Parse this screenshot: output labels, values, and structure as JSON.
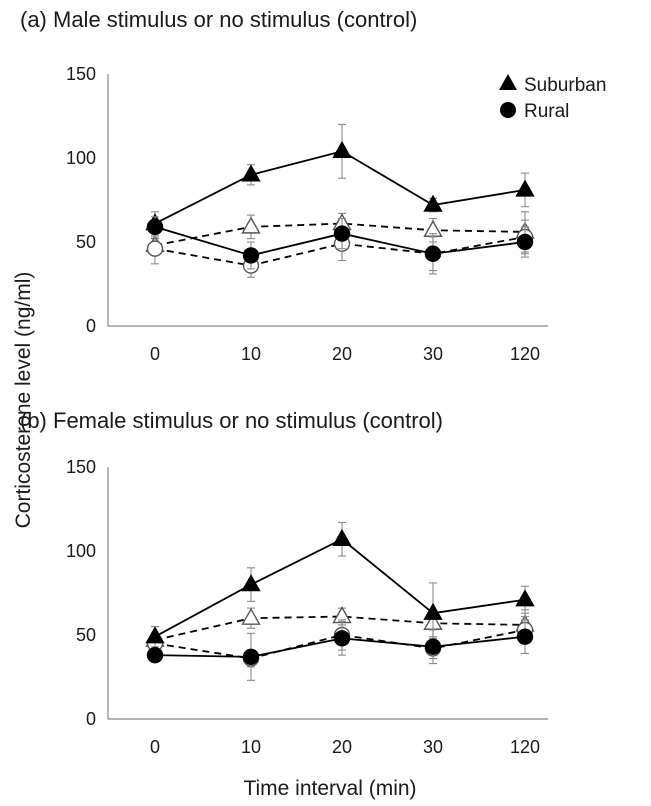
{
  "figure": {
    "shared_ylabel": "Corticosterone level (ng/ml)",
    "shared_xlabel": "Time interval (min)",
    "legend": [
      {
        "label": "Suburban",
        "marker": "triangle",
        "color": "#000000"
      },
      {
        "label": "Rural",
        "marker": "circle",
        "color": "#000000"
      }
    ]
  },
  "chart_data": [
    {
      "type": "line",
      "title": "(a) Male stimulus or no stimulus (control)",
      "categories": [
        "0",
        "10",
        "20",
        "30",
        "120"
      ],
      "ylim": [
        0,
        150
      ],
      "yticks": [
        0,
        50,
        100,
        150
      ],
      "grid": false,
      "legend_position": "top-right",
      "series": [
        {
          "name": "Suburban",
          "marker": "triangle",
          "filled": true,
          "dash": false,
          "values": [
            61,
            90,
            104,
            72,
            81
          ],
          "error": [
            7,
            6,
            16,
            4,
            10
          ]
        },
        {
          "marker": "triangle",
          "filled": false,
          "dash": true,
          "values": [
            48,
            59,
            61,
            57,
            56
          ],
          "error": [
            4,
            7,
            6,
            7,
            12
          ]
        },
        {
          "name": "Rural",
          "marker": "circle",
          "filled": true,
          "dash": false,
          "values": [
            59,
            42,
            55,
            43,
            50
          ],
          "error": [
            6,
            8,
            9,
            10,
            9
          ]
        },
        {
          "marker": "circle",
          "filled": false,
          "dash": true,
          "values": [
            46,
            36,
            49,
            43,
            53
          ],
          "error": [
            9,
            7,
            10,
            12,
            10
          ]
        }
      ]
    },
    {
      "type": "line",
      "title": "(b) Female stimulus or no stimulus (control)",
      "categories": [
        "0",
        "10",
        "20",
        "30",
        "120"
      ],
      "ylim": [
        0,
        150
      ],
      "yticks": [
        0,
        50,
        100,
        150
      ],
      "grid": false,
      "series": [
        {
          "marker": "triangle",
          "filled": true,
          "dash": false,
          "values": [
            49,
            80,
            107,
            63,
            71
          ],
          "error": [
            6,
            10,
            10,
            18,
            8
          ]
        },
        {
          "marker": "triangle",
          "filled": false,
          "dash": true,
          "values": [
            47,
            60,
            61,
            57,
            56
          ],
          "error": [
            4,
            6,
            5,
            8,
            9
          ]
        },
        {
          "marker": "circle",
          "filled": true,
          "dash": false,
          "values": [
            38,
            37,
            48,
            43,
            49
          ],
          "error": [
            4,
            14,
            10,
            10,
            10
          ]
        },
        {
          "marker": "circle",
          "filled": false,
          "dash": true,
          "values": [
            45,
            36,
            50,
            42,
            53
          ],
          "error": [
            4,
            5,
            9,
            6,
            8
          ]
        }
      ]
    }
  ]
}
